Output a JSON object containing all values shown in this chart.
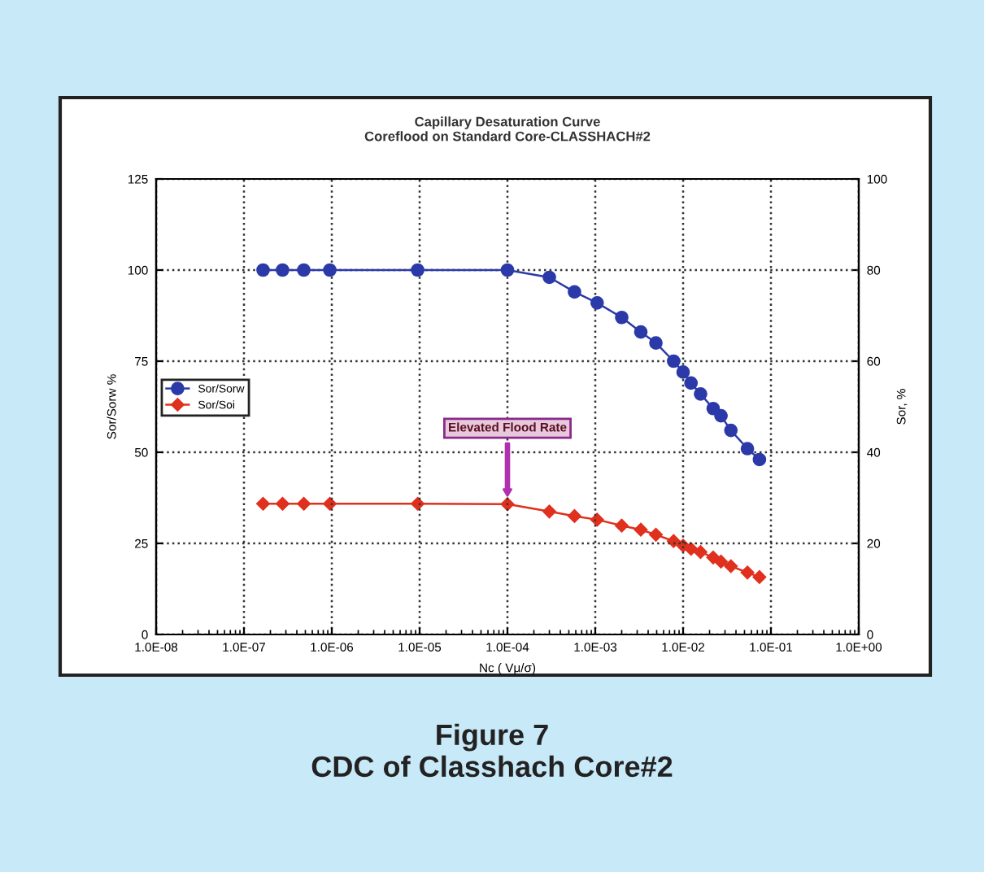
{
  "chart_data": {
    "type": "line",
    "title": "Capillary Desaturation Curve\nCoreflood on Standard Core-CLASSHACH#2",
    "xlabel": "Nc ( Vμ/σ)",
    "ylabel": "Sor/Sorw %",
    "y2label": "Sor, %",
    "log": "x",
    "xlim": [
      1e-08,
      1
    ],
    "xticks": [
      {
        "value": 1e-08,
        "label": "1.0E-08"
      },
      {
        "value": 1e-07,
        "label": "1.0E-07"
      },
      {
        "value": 1e-06,
        "label": "1.0E-06"
      },
      {
        "value": 1e-05,
        "label": "1.0E-05"
      },
      {
        "value": 0.0001,
        "label": "1.0E-04"
      },
      {
        "value": 0.001,
        "label": "1.0E-03"
      },
      {
        "value": 0.01,
        "label": "1.0E-02"
      },
      {
        "value": 0.1,
        "label": "1.0E-01"
      },
      {
        "value": 1,
        "label": "1.0E+00"
      }
    ],
    "ylim": [
      0,
      125
    ],
    "yticks": [
      0,
      25,
      50,
      75,
      100,
      125
    ],
    "y2lim": [
      0,
      100
    ],
    "y2ticks": [
      0,
      20,
      40,
      60,
      80,
      100
    ],
    "grid": true,
    "legend": "left",
    "x": [
      1.65e-07,
      2.75e-07,
      4.8e-07,
      9.5e-07,
      9.5e-06,
      0.0001,
      0.0003,
      0.00058,
      0.00105,
      0.002,
      0.0033,
      0.0049,
      0.0078,
      0.01,
      0.0123,
      0.0158,
      0.022,
      0.027,
      0.035,
      0.054,
      0.074
    ],
    "series": [
      {
        "name": "Sor/Sorw",
        "color": "#2b3aa8",
        "marker": "circle",
        "values": [
          100,
          100,
          100,
          100,
          100,
          100,
          98,
          94,
          91,
          87,
          83,
          80,
          75,
          72,
          69,
          66,
          62,
          60,
          56,
          51,
          48
        ]
      },
      {
        "name": "Sor/Soi",
        "color": "#e0301e",
        "marker": "diamond",
        "axis": "y2",
        "values": [
          28.7,
          28.7,
          28.7,
          28.7,
          28.7,
          28.6,
          27.0,
          26.0,
          25.2,
          23.9,
          23.0,
          21.9,
          20.5,
          19.5,
          18.8,
          18.1,
          16.9,
          16.0,
          15.0,
          13.6,
          12.6
        ]
      }
    ],
    "annotations": [
      "Elevated Flood Rate",
      "Figure 7\nCDC of Classhach Core#2"
    ]
  }
}
